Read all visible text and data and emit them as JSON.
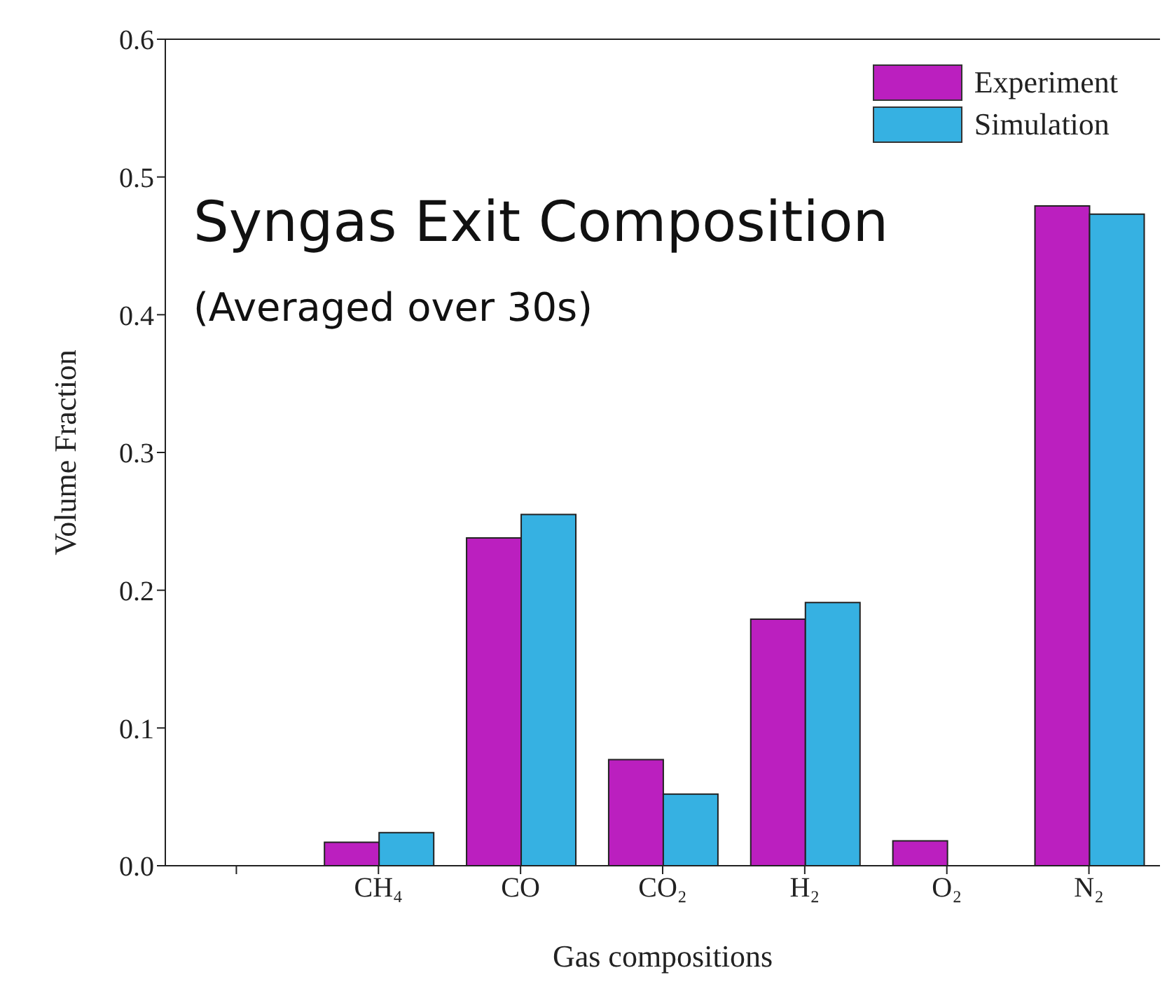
{
  "chart_data": {
    "type": "bar",
    "title": "Syngas Exit Composition",
    "subtitle": "(Averaged over 30s)",
    "xlabel": "Gas compositions",
    "ylabel": "Volume Fraction",
    "categories": [
      null,
      "CH₄",
      "CO",
      "CO₂",
      "H₂",
      "O₂",
      "N₂"
    ],
    "series": [
      {
        "name": "Experiment",
        "color": "#bb1fbf",
        "values": [
          null,
          0.017,
          0.238,
          0.077,
          0.179,
          0.018,
          0.479
        ]
      },
      {
        "name": "Simulation",
        "color": "#36b1e2",
        "values": [
          null,
          0.024,
          0.255,
          0.052,
          0.191,
          null,
          0.473
        ]
      }
    ],
    "ylim": [
      0,
      0.6
    ],
    "yticks": [
      {
        "value": 0,
        "label": "0.0"
      },
      0.1,
      0.2,
      0.3,
      0.4,
      0.5,
      0.6
    ],
    "grid": false,
    "legend": "top right"
  }
}
